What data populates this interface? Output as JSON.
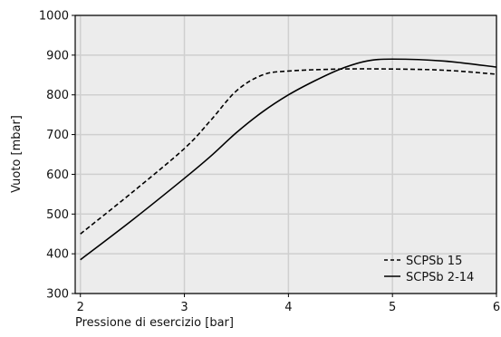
{
  "chart_data": {
    "type": "line",
    "title": "",
    "xlabel": "Pressione di esercizio [bar]",
    "ylabel": "Vuoto [mbar]",
    "xlim": [
      1.95,
      6.0
    ],
    "ylim": [
      300,
      1000
    ],
    "xticks": [
      2,
      3,
      4,
      5,
      6
    ],
    "yticks": [
      300,
      400,
      500,
      600,
      700,
      800,
      900,
      1000
    ],
    "grid": true,
    "legend_position": "bottom-right",
    "plot_background": "#ececec",
    "grid_color": "#cfcfcf",
    "series": [
      {
        "name": "SCPSb 15",
        "style": "dashed",
        "color": "#000000",
        "x": [
          2.0,
          2.5,
          3.0,
          3.25,
          3.5,
          3.75,
          4.0,
          4.5,
          5.0,
          5.5,
          6.0
        ],
        "y": [
          450,
          555,
          665,
          735,
          810,
          850,
          860,
          865,
          865,
          862,
          852
        ]
      },
      {
        "name": "SCPSb 2-14",
        "style": "solid",
        "color": "#000000",
        "x": [
          2.0,
          2.5,
          3.0,
          3.25,
          3.5,
          3.75,
          4.0,
          4.25,
          4.5,
          4.75,
          5.0,
          5.5,
          6.0
        ],
        "y": [
          385,
          485,
          590,
          645,
          705,
          757,
          800,
          835,
          865,
          885,
          890,
          885,
          870
        ]
      }
    ]
  }
}
